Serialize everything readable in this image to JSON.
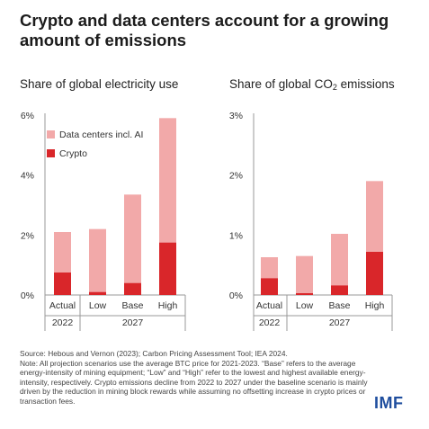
{
  "title": "Crypto and data centers account for a growing amount of emissions",
  "colors": {
    "data_centers": "#f2a9a9",
    "crypto": "#d9262a",
    "axis": "#999999",
    "logo": "#1f4e9e"
  },
  "legend": [
    {
      "key": "data_centers",
      "label": "Data centers incl. AI"
    },
    {
      "key": "crypto",
      "label": "Crypto"
    }
  ],
  "chart_data": [
    {
      "type": "bar",
      "stacked": true,
      "title": "Share of global electricity use",
      "categories": [
        "Actual",
        "Low",
        "Base",
        "High"
      ],
      "groups": [
        {
          "label": "2022",
          "categories": [
            "Actual"
          ]
        },
        {
          "label": "2027",
          "categories": [
            "Low",
            "Base",
            "High"
          ]
        }
      ],
      "series": [
        {
          "name": "Crypto",
          "key": "crypto",
          "values": [
            0.75,
            0.1,
            0.4,
            1.75
          ]
        },
        {
          "name": "Data centers incl. AI",
          "key": "data_centers",
          "values": [
            1.35,
            2.1,
            2.95,
            4.15
          ]
        }
      ],
      "totals": [
        2.1,
        2.2,
        3.35,
        5.9
      ],
      "ylim": [
        0,
        6
      ],
      "yticks": [
        0,
        2,
        4,
        6
      ],
      "ytick_labels": [
        "0%",
        "2%",
        "4%",
        "6%"
      ],
      "legend_position": "top-left"
    },
    {
      "type": "bar",
      "stacked": true,
      "title": "Share of global CO2 emissions",
      "categories": [
        "Actual",
        "Low",
        "Base",
        "High"
      ],
      "groups": [
        {
          "label": "2022",
          "categories": [
            "Actual"
          ]
        },
        {
          "label": "2027",
          "categories": [
            "Low",
            "Base",
            "High"
          ]
        }
      ],
      "series": [
        {
          "name": "Crypto",
          "key": "crypto",
          "values": [
            0.28,
            0.03,
            0.16,
            0.72
          ]
        },
        {
          "name": "Data centers incl. AI",
          "key": "data_centers",
          "values": [
            0.35,
            0.62,
            0.86,
            1.18
          ]
        }
      ],
      "totals": [
        0.63,
        0.65,
        1.02,
        1.9
      ],
      "ylim": [
        0,
        3
      ],
      "yticks": [
        0,
        1,
        2,
        3
      ],
      "ytick_labels": [
        "0%",
        "1%",
        "2%",
        "3%"
      ]
    }
  ],
  "panel_titles": {
    "left": "Share of global electricity use",
    "right_main": "Share of global CO",
    "right_sub": "2",
    "right_suffix": " emissions"
  },
  "footer": {
    "source": "Source: Hebous and Vernon (2023); Carbon Pricing Assessment Tool; IEA 2024.",
    "note": "Note: All projection scenarios use the average BTC price for 2021-2023. “Base” refers to the average energy-intensity of mining equipment; “Low” and “High” refer to the lowest and highest available energy-intensity, respectively. Crypto emissions decline from 2022 to 2027 under the baseline scenario is mainly driven by the reduction in mining block rewards while assuming no offsetting increase in crypto prices or transaction fees."
  },
  "logo": "IMF"
}
